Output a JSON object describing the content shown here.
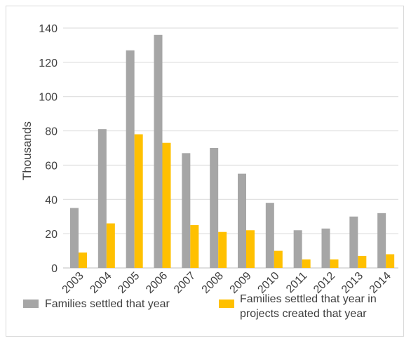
{
  "chart_data": {
    "type": "bar",
    "categories": [
      "2003",
      "2004",
      "2005",
      "2006",
      "2007",
      "2008",
      "2009",
      "2010",
      "2011",
      "2012",
      "2013",
      "2014"
    ],
    "series": [
      {
        "name": "Families settled that year",
        "color": "#a6a6a6",
        "values": [
          35,
          81,
          127,
          136,
          67,
          70,
          55,
          38,
          22,
          23,
          30,
          32
        ]
      },
      {
        "name": "Families settled that year in projects created that year",
        "color": "#ffc000",
        "values": [
          9,
          26,
          78,
          73,
          25,
          21,
          22,
          10,
          5,
          5,
          7,
          8
        ]
      }
    ],
    "ylabel": "Thousands",
    "xlabel": "",
    "ylim": [
      0,
      140
    ],
    "yticks": [
      0,
      20,
      40,
      60,
      80,
      100,
      120,
      140
    ],
    "grid": true,
    "legend_position": "bottom"
  },
  "legend": {
    "item1": "Families settled that year",
    "item2_line1": "Families settled that year in",
    "item2_line2": "projects created that year"
  }
}
